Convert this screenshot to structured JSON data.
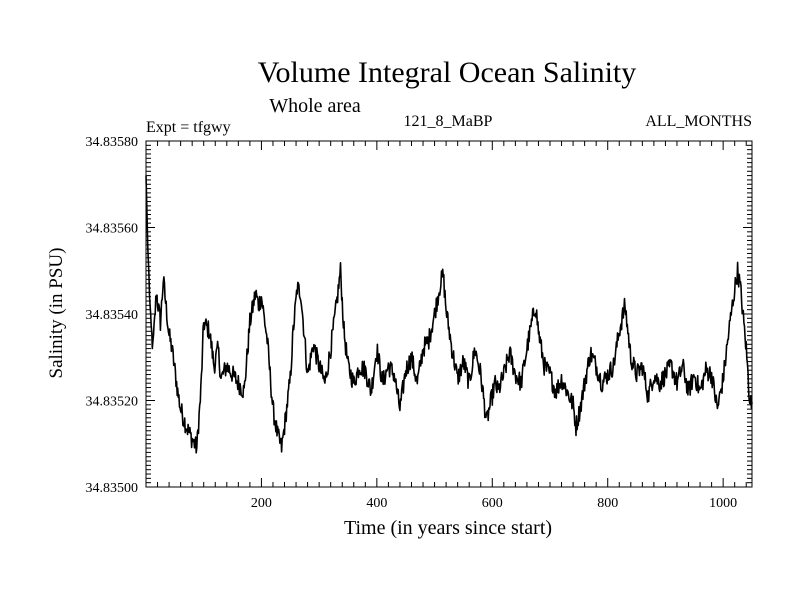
{
  "chart_data": {
    "type": "line",
    "title": "Volume Integral Ocean Salinity",
    "subtitle": "Whole area",
    "labels": {
      "left": "Expt = tfgwy",
      "center": "121_8_MaBP",
      "right": "ALL_MONTHS"
    },
    "xlabel": "Time (in years since start)",
    "ylabel": "Salinity (in PSU)",
    "xlim": [
      0,
      1050
    ],
    "ylim": [
      34.835,
      34.8358
    ],
    "x_ticks": [
      200,
      400,
      600,
      800,
      1000
    ],
    "y_ticks": [
      "34.83500",
      "34.83520",
      "34.83540",
      "34.83560",
      "34.83580"
    ],
    "grid": false,
    "series": [
      {
        "name": "Salinity",
        "x": [
          0,
          3,
          8,
          12,
          18,
          25,
          30,
          40,
          45,
          55,
          60,
          70,
          80,
          88,
          95,
          100,
          110,
          118,
          125,
          130,
          140,
          150,
          160,
          170,
          180,
          190,
          195,
          200,
          210,
          215,
          220,
          228,
          235,
          240,
          250,
          255,
          262,
          268,
          275,
          280,
          290,
          300,
          310,
          320,
          330,
          337,
          343,
          350,
          360,
          370,
          380,
          390,
          400,
          410,
          420,
          430,
          440,
          450,
          460,
          470,
          480,
          490,
          500,
          510,
          515,
          520,
          530,
          540,
          550,
          560,
          570,
          580,
          590,
          598,
          605,
          610,
          620,
          630,
          640,
          650,
          660,
          670,
          675,
          680,
          690,
          700,
          710,
          720,
          730,
          740,
          745,
          752,
          760,
          770,
          780,
          790,
          800,
          810,
          820,
          830,
          840,
          850,
          860,
          870,
          880,
          890,
          900,
          910,
          920,
          930,
          940,
          950,
          960,
          970,
          980,
          990,
          1000,
          1010,
          1018,
          1025,
          1030,
          1040,
          1045,
          1050
        ],
        "values": [
          34.83572,
          34.83556,
          34.83538,
          34.83532,
          34.83545,
          34.83538,
          34.83548,
          34.83535,
          34.83532,
          34.83522,
          34.83518,
          34.83514,
          34.83511,
          34.83509,
          34.83522,
          34.83538,
          34.83536,
          34.83528,
          34.83532,
          34.83525,
          34.83528,
          34.83526,
          34.83524,
          34.83522,
          34.83538,
          34.83545,
          34.83542,
          34.83544,
          34.83534,
          34.83526,
          34.83518,
          34.83512,
          34.83509,
          34.83514,
          34.83525,
          34.83536,
          34.83546,
          34.83545,
          34.83534,
          34.83526,
          34.83533,
          34.83528,
          34.83524,
          34.83532,
          34.83542,
          34.8355,
          34.83536,
          34.83528,
          34.83524,
          34.83528,
          34.83527,
          34.83522,
          34.83532,
          34.83524,
          34.83528,
          34.83526,
          34.83518,
          34.83527,
          34.8353,
          34.83524,
          34.83532,
          34.83534,
          34.8354,
          34.83547,
          34.83549,
          34.83541,
          34.83532,
          34.83525,
          34.83529,
          34.83524,
          34.83532,
          34.83526,
          34.83515,
          34.8352,
          34.83524,
          34.83522,
          34.83526,
          34.83531,
          34.83526,
          34.83524,
          34.83532,
          34.83539,
          34.83542,
          34.83536,
          34.83528,
          34.83526,
          34.83522,
          34.83525,
          34.83522,
          34.83519,
          34.83514,
          34.83518,
          34.83524,
          34.83531,
          34.83528,
          34.83524,
          34.83526,
          34.83528,
          34.83536,
          34.83542,
          34.8353,
          34.83526,
          34.83528,
          34.83521,
          34.83526,
          34.83524,
          34.83526,
          34.83528,
          34.83524,
          34.83528,
          34.83522,
          34.83526,
          34.83522,
          34.83527,
          34.83526,
          34.83518,
          34.83525,
          34.83536,
          34.83544,
          34.8355,
          34.83546,
          34.83532,
          34.83522,
          34.83518
        ]
      }
    ]
  }
}
